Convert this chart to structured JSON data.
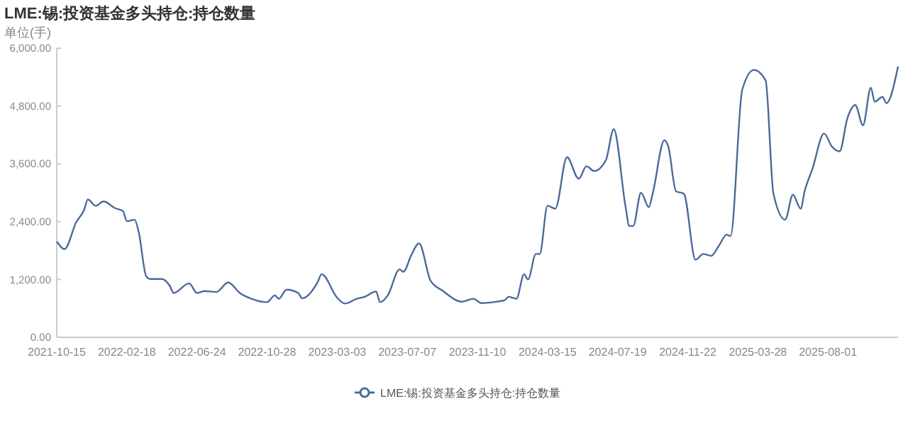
{
  "chart_data": {
    "type": "line",
    "title": "LME:锡:投资基金多头持仓:持仓数量",
    "ylabel": "单位(手)",
    "x": [
      "2021-10-15",
      "2021-10-29",
      "2021-11-19",
      "2021-12-03",
      "2021-12-10",
      "2021-12-24",
      "2022-01-07",
      "2022-01-28",
      "2022-02-11",
      "2022-02-18",
      "2022-03-04",
      "2022-03-11",
      "2022-03-25",
      "2022-04-01",
      "2022-04-22",
      "2022-05-06",
      "2022-05-13",
      "2022-06-10",
      "2022-06-24",
      "2022-07-08",
      "2022-07-29",
      "2022-08-19",
      "2022-09-09",
      "2022-09-30",
      "2022-10-28",
      "2022-11-11",
      "2022-11-18",
      "2022-12-02",
      "2022-12-23",
      "2022-12-30",
      "2023-01-27",
      "2023-02-03",
      "2023-03-03",
      "2023-03-17",
      "2023-04-07",
      "2023-04-21",
      "2023-05-12",
      "2023-05-19",
      "2023-06-02",
      "2023-06-23",
      "2023-06-30",
      "2023-07-14",
      "2023-07-28",
      "2023-08-18",
      "2023-09-08",
      "2023-10-13",
      "2023-11-03",
      "2023-11-17",
      "2023-12-15",
      "2023-12-29",
      "2024-01-05",
      "2024-01-19",
      "2024-02-02",
      "2024-02-09",
      "2024-02-23",
      "2024-03-01",
      "2024-03-15",
      "2024-03-29",
      "2024-04-19",
      "2024-05-10",
      "2024-05-24",
      "2024-06-07",
      "2024-06-28",
      "2024-07-12",
      "2024-08-02",
      "2024-08-09",
      "2024-08-16",
      "2024-08-30",
      "2024-09-13",
      "2024-09-20",
      "2024-10-11",
      "2024-10-18",
      "2024-11-01",
      "2024-11-15",
      "2024-12-06",
      "2024-12-20",
      "2025-01-03",
      "2025-01-17",
      "2025-01-31",
      "2025-02-07",
      "2025-02-28",
      "2025-03-21",
      "2025-04-11",
      "2025-04-25",
      "2025-05-16",
      "2025-05-30",
      "2025-06-13",
      "2025-06-20",
      "2025-07-04",
      "2025-07-25",
      "2025-08-08",
      "2025-08-22",
      "2025-09-05",
      "2025-09-19",
      "2025-10-03",
      "2025-10-17",
      "2025-10-24",
      "2025-11-07",
      "2025-11-14",
      "2025-12-05"
    ],
    "series": [
      {
        "name": "LME:锡:投资基金多头持仓:持仓数量",
        "color": "#4b6a9b",
        "values": [
          1990,
          1830,
          2390,
          2640,
          2860,
          2730,
          2820,
          2680,
          2620,
          2410,
          2440,
          2200,
          1260,
          1210,
          1210,
          1070,
          920,
          1120,
          920,
          960,
          940,
          1140,
          920,
          800,
          730,
          870,
          800,
          990,
          920,
          810,
          1150,
          1310,
          820,
          700,
          800,
          840,
          950,
          730,
          870,
          1410,
          1360,
          1700,
          1950,
          1170,
          970,
          740,
          800,
          710,
          740,
          770,
          840,
          800,
          1310,
          1200,
          1730,
          1730,
          2730,
          2670,
          3740,
          3290,
          3550,
          3450,
          3680,
          4320,
          2730,
          2310,
          2310,
          3000,
          2700,
          2980,
          4090,
          3960,
          3030,
          2980,
          1610,
          1730,
          1690,
          1900,
          2130,
          2100,
          5140,
          5550,
          5330,
          2980,
          2440,
          2960,
          2670,
          3030,
          3490,
          4230,
          3960,
          3860,
          4550,
          4820,
          4400,
          5180,
          4890,
          4990,
          4860,
          5620
        ]
      }
    ],
    "xlim": [
      "2021-10-15",
      "2025-12-05"
    ],
    "xticks": [
      {
        "value": "2021-10-15",
        "label": "2021-10-15"
      },
      {
        "value": "2022-02-18",
        "label": "2022-02-18"
      },
      {
        "value": "2022-06-24",
        "label": "2022-06-24"
      },
      {
        "value": "2022-10-28",
        "label": "2022-10-28"
      },
      {
        "value": "2023-03-03",
        "label": "2023-03-03"
      },
      {
        "value": "2023-07-07",
        "label": "2023-07-07"
      },
      {
        "value": "2023-11-10",
        "label": "2023-11-10"
      },
      {
        "value": "2024-03-15",
        "label": "2024-03-15"
      },
      {
        "value": "2024-07-19",
        "label": "2024-07-19"
      },
      {
        "value": "2024-11-22",
        "label": "2024-11-22"
      },
      {
        "value": "2025-03-28",
        "label": "2025-03-28"
      },
      {
        "value": "2025-08-01",
        "label": "2025-08-01"
      }
    ],
    "ylim": [
      0,
      6000
    ],
    "yticks": [
      {
        "value": 0,
        "label": "0.00"
      },
      {
        "value": 1200,
        "label": "1,200.00"
      },
      {
        "value": 2400,
        "label": "2,400.00"
      },
      {
        "value": 3600,
        "label": "3,600.00"
      },
      {
        "value": 4800,
        "label": "4,800.00"
      },
      {
        "value": 6000,
        "label": "6,000.00"
      }
    ],
    "grid": false,
    "legend": "bottom",
    "line_style": "solid"
  }
}
